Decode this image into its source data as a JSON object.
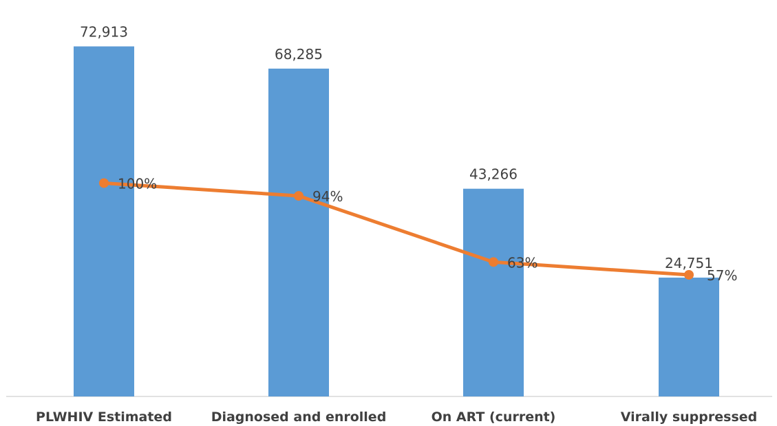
{
  "chart_data": {
    "type": "bar",
    "categories": [
      "PLWHIV Estimated",
      "Diagnosed and enrolled",
      "On ART (current)",
      "Virally suppressed"
    ],
    "series": [
      {
        "type": "bar",
        "values": [
          72913,
          68285,
          43266,
          24751
        ],
        "value_labels": [
          "72,913",
          "68,285",
          "43,266",
          "24,751"
        ],
        "color": "#5B9BD5"
      },
      {
        "type": "line",
        "values": [
          100,
          94,
          63,
          57
        ],
        "value_labels": [
          "100%",
          "94%",
          "63%",
          "57%"
        ],
        "color": "#ED7D31"
      }
    ],
    "ylim": [
      0,
      80000
    ],
    "y2lim": [
      0,
      180
    ],
    "grid": false,
    "legend": "none"
  }
}
